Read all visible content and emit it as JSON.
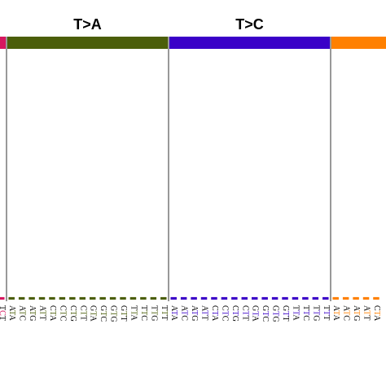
{
  "chart_data": {
    "type": "bar",
    "ylim": [
      0,
      100
    ],
    "groups": [
      {
        "label": null,
        "color": "#d6175f",
        "categories": [
          "TCT"
        ],
        "values": [
          1
        ]
      },
      {
        "label": "T>A",
        "color": "#4b5e0a",
        "categories": [
          "ATA",
          "ATC",
          "ATG",
          "ATT",
          "CTA",
          "CTC",
          "CTG",
          "CTT",
          "GTA",
          "GTC",
          "GTG",
          "GTT",
          "TTA",
          "TTC",
          "TTG",
          "TTT"
        ],
        "values": [
          1,
          1,
          1,
          1,
          1,
          1,
          1,
          1,
          1,
          1,
          1,
          1,
          1,
          1,
          1,
          1
        ]
      },
      {
        "label": "T>C",
        "color": "#3a00c8",
        "categories": [
          "ATA",
          "ATC",
          "ATG",
          "ATT",
          "CTA",
          "CTC",
          "CTG",
          "CTT",
          "GTA",
          "GTC",
          "GTG",
          "GTT",
          "TTA",
          "TTC",
          "TTG",
          "TTT"
        ],
        "values": [
          1,
          1,
          1,
          1,
          1,
          1,
          1,
          1,
          1,
          1,
          1,
          1,
          1,
          1,
          1,
          1
        ]
      },
      {
        "label": null,
        "color": "#ff8000",
        "categories": [
          "ATA",
          "ATC",
          "ATG",
          "ATT",
          "CTA"
        ],
        "values": [
          1,
          1,
          1,
          1,
          1
        ]
      }
    ]
  }
}
